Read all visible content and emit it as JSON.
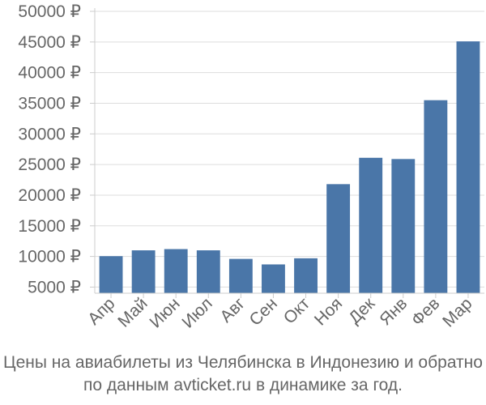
{
  "chart_data": {
    "type": "bar",
    "categories": [
      "Апр",
      "Май",
      "Июн",
      "Июл",
      "Авг",
      "Сен",
      "Окт",
      "Ноя",
      "Дек",
      "Янв",
      "Фев",
      "Мар"
    ],
    "values": [
      10050,
      11000,
      11200,
      11000,
      9600,
      8700,
      9700,
      21800,
      26100,
      25900,
      35500,
      45100
    ],
    "ylim": [
      4000,
      50000
    ],
    "yticks": [
      5000,
      10000,
      15000,
      20000,
      25000,
      30000,
      35000,
      40000,
      45000,
      50000
    ],
    "ytick_labels": [
      "5000 ₽",
      "10000 ₽",
      "15000 ₽",
      "20000 ₽",
      "25000 ₽",
      "30000 ₽",
      "35000 ₽",
      "40000 ₽",
      "45000 ₽",
      "50000 ₽"
    ],
    "grid": true,
    "bar_color": "#4a76a8",
    "grid_color": "#dddddd",
    "text_color": "#666666"
  },
  "caption": {
    "line1": "Цены на авиабилеты из Челябинска в Индонезию и обратно",
    "line2": "по данным avticket.ru в динамике за год."
  }
}
